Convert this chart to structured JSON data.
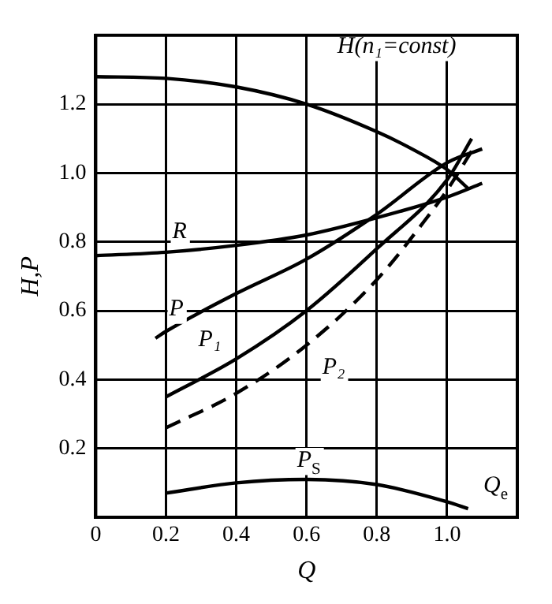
{
  "chart_data": {
    "type": "line",
    "xlabel": "Q",
    "ylabel": "H,P",
    "xlim": [
      0,
      1.2
    ],
    "xticks": [
      0,
      0.2,
      0.4,
      0.6,
      0.8,
      {
        "value": 1,
        "label": "1.0"
      }
    ],
    "ylim": [
      0,
      1.4
    ],
    "yticks": [
      0.2,
      0.4,
      0.6,
      0.8,
      {
        "value": 1,
        "label": "1.0"
      },
      1.2
    ],
    "grid": true,
    "legend": false,
    "marker": "none",
    "series": [
      {
        "name": "H(n₁=const)",
        "color": "#000000",
        "x": [
          0,
          0.2,
          0.4,
          0.6,
          0.8,
          0.9,
          1.0,
          1.06
        ],
        "values": [
          1.28,
          1.275,
          1.25,
          1.2,
          1.12,
          1.07,
          1.01,
          0.955
        ]
      },
      {
        "name": "R",
        "color": "#000000",
        "x": [
          0,
          0.2,
          0.4,
          0.6,
          0.8,
          1.0,
          1.1
        ],
        "values": [
          0.76,
          0.77,
          0.79,
          0.82,
          0.87,
          0.93,
          0.97
        ]
      },
      {
        "name": "P",
        "color": "#000000",
        "x": [
          0.17,
          0.2,
          0.4,
          0.6,
          0.8,
          1.0,
          1.1
        ],
        "values": [
          0.52,
          0.54,
          0.65,
          0.75,
          0.88,
          1.03,
          1.07
        ]
      },
      {
        "name": "P₁",
        "color": "#000000",
        "x": [
          0.2,
          0.4,
          0.6,
          0.8,
          1.0,
          1.07
        ],
        "values": [
          0.35,
          0.46,
          0.6,
          0.78,
          0.98,
          1.1
        ]
      },
      {
        "name": "P₂",
        "color": "#000000",
        "line_style": "dashed",
        "x": [
          0.2,
          0.4,
          0.6,
          0.8,
          0.95,
          1.0,
          1.08
        ],
        "values": [
          0.26,
          0.36,
          0.5,
          0.69,
          0.88,
          0.95,
          1.08
        ]
      },
      {
        "name": "P$_{S}$",
        "color": "#000000",
        "x": [
          0.2,
          0.4,
          0.6,
          0.8,
          1.0,
          1.06
        ],
        "values": [
          0.07,
          0.1,
          0.11,
          0.095,
          0.045,
          0.025
        ]
      }
    ],
    "annotations": [
      "Q$_{e}$"
    ]
  }
}
